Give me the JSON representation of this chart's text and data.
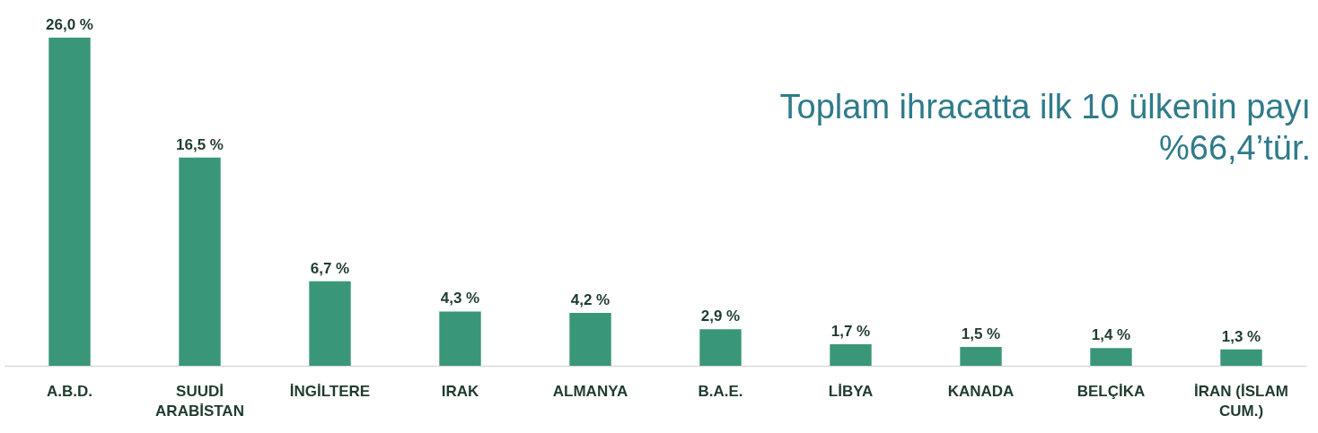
{
  "chart_data": {
    "type": "bar",
    "categories": [
      "A.B.D.",
      "SUUDİ ARABİSTAN",
      "İNGİLTERE",
      "IRAK",
      "ALMANYA",
      "B.A.E.",
      "LİBYA",
      "KANADA",
      "BELÇİKA",
      "İRAN (İSLAM CUM.)"
    ],
    "values": [
      26.0,
      16.5,
      6.7,
      4.3,
      4.2,
      2.9,
      1.7,
      1.5,
      1.4,
      1.3
    ],
    "value_labels": [
      "26,0 %",
      "16,5 %",
      "6,7 %",
      "4,3 %",
      "4,2 %",
      "2,9 %",
      "1,7 %",
      "1,5 %",
      "1,4 %",
      "1,3 %"
    ],
    "color": "#3a9679",
    "annotations": [
      "Toplam ihracatta ilk 10 ülkenin payı %66,4’tür."
    ],
    "grid": false
  }
}
